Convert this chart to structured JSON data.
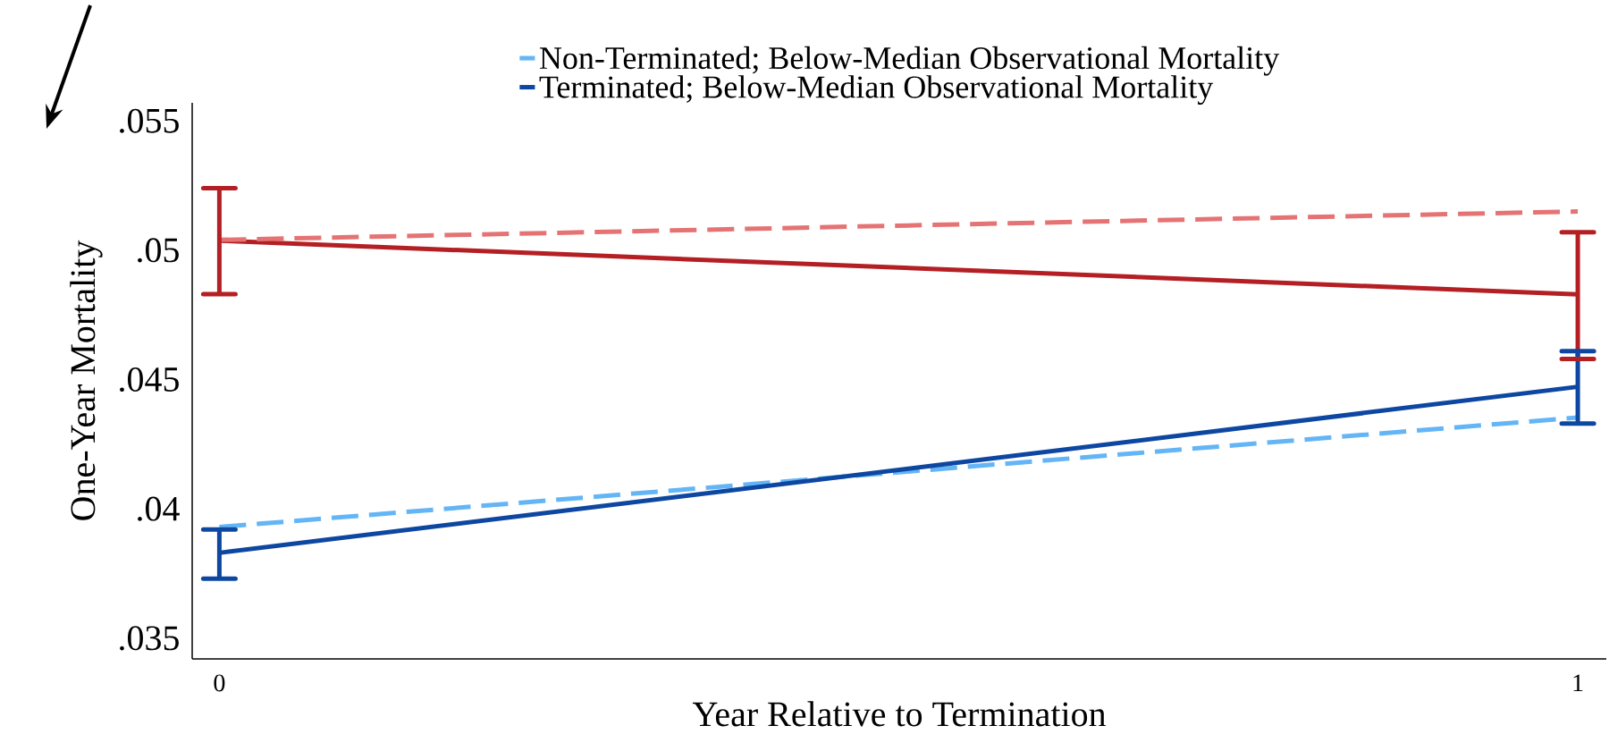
{
  "chart_data": {
    "type": "line",
    "xlabel": "Year Relative to Termination",
    "ylabel": "One-Year Mortality",
    "x": [
      0,
      1
    ],
    "series": [
      {
        "color": "#b41f24",
        "line_style": "solid",
        "values": [
          0.05037,
          0.04829
        ],
        "errors": [
          [
            0.0483,
            0.0524
          ],
          [
            0.0458,
            0.0507
          ]
        ]
      },
      {
        "color": "#e57373",
        "line_style": "dashed",
        "values": [
          0.0504,
          0.0515
        ]
      },
      {
        "name": "Non-Terminated; Below-Median Observational Mortality",
        "color": "#64b5f6",
        "line_style": "dashed",
        "values": [
          0.0393,
          0.04353
        ]
      },
      {
        "name": "Terminated; Below-Median Observational Mortality",
        "color": "#0d47a1",
        "line_style": "solid",
        "values": [
          0.0383,
          0.04472
        ],
        "errors": [
          [
            0.0373,
            0.0392
          ],
          [
            0.0433,
            0.0461
          ]
        ]
      }
    ],
    "xlim": [
      -0.02,
      1.021
    ],
    "ylim": [
      0.0342,
      0.0557
    ],
    "xticks": [
      0,
      1
    ],
    "yticks": [
      {
        "value": 0.035,
        "label": ".035"
      },
      {
        "value": 0.04,
        "label": ".04"
      },
      {
        "value": 0.045,
        "label": ".045"
      },
      {
        "value": 0.05,
        "label": ".05"
      },
      {
        "value": 0.055,
        "label": ".055"
      }
    ],
    "legend": "top",
    "marker": "none"
  }
}
